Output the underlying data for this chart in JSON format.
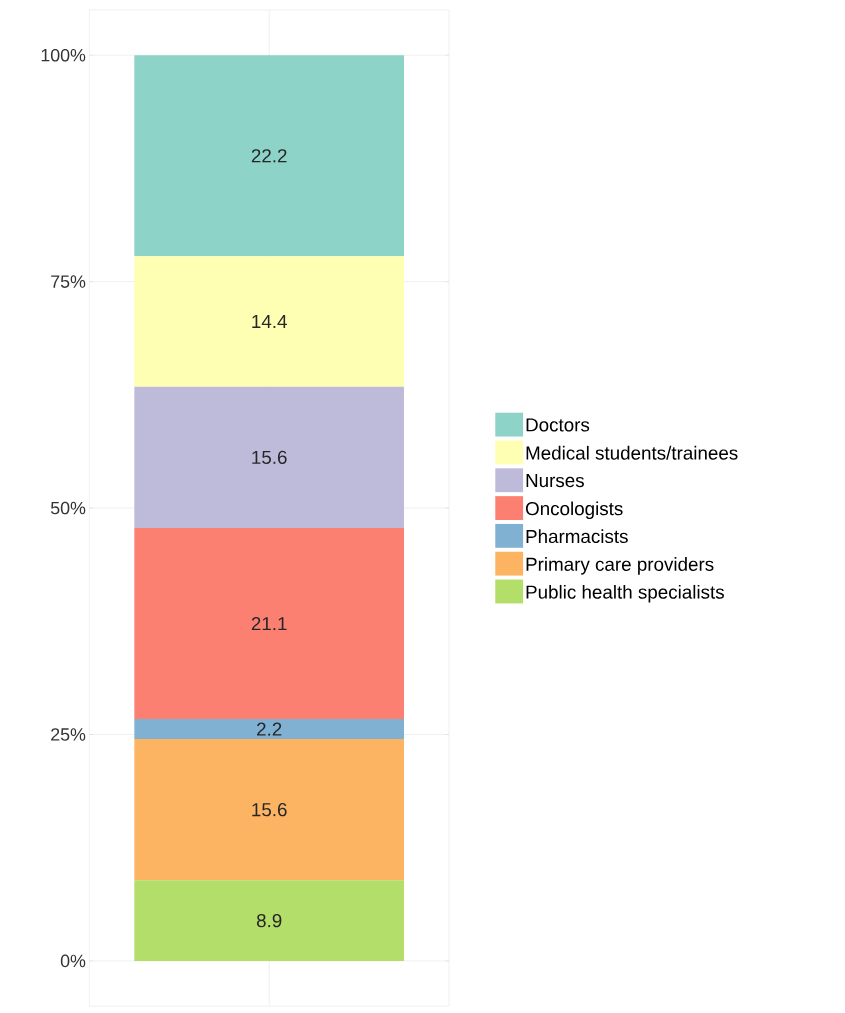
{
  "chart_data": {
    "type": "bar",
    "stacked": true,
    "categories": [
      null
    ],
    "series": [
      {
        "name": "Public health specialists",
        "color": "#b3de69",
        "values": [
          8.9
        ]
      },
      {
        "name": "Primary care providers",
        "color": "#fdb462",
        "values": [
          15.6
        ]
      },
      {
        "name": "Pharmacists",
        "color": "#80b1d3",
        "values": [
          2.2
        ]
      },
      {
        "name": "Oncologists",
        "color": "#fb8072",
        "values": [
          21.1
        ]
      },
      {
        "name": "Nurses",
        "color": "#bebada",
        "values": [
          15.6
        ]
      },
      {
        "name": "Medical students/trainees",
        "color": "#ffffb3",
        "values": [
          14.4
        ]
      },
      {
        "name": "Doctors",
        "color": "#8dd3c7",
        "values": [
          22.2
        ]
      }
    ],
    "ylim": [
      -5,
      105
    ],
    "yticks": [
      {
        "value": 0,
        "label": "0%"
      },
      {
        "value": 25,
        "label": "25%"
      },
      {
        "value": 50,
        "label": "50%"
      },
      {
        "value": 75,
        "label": "75%"
      },
      {
        "value": 100,
        "label": "100%"
      }
    ],
    "data_labels": true,
    "grid": true,
    "legend": "right",
    "tick_labels": "y"
  }
}
